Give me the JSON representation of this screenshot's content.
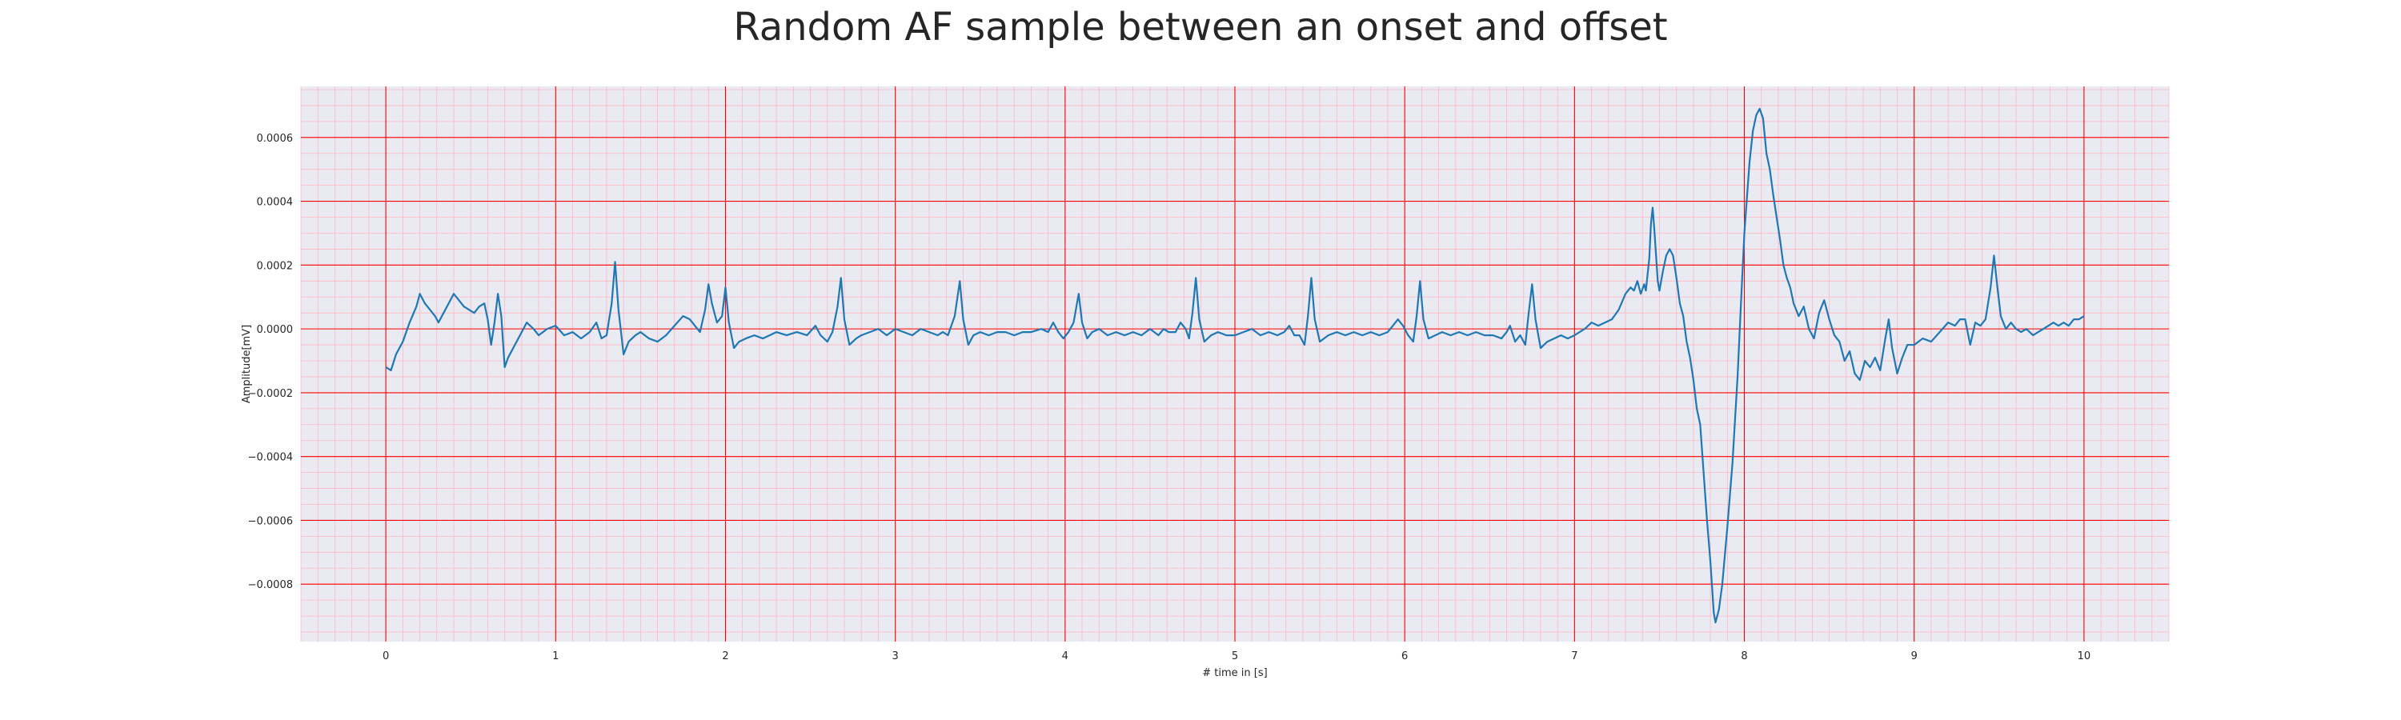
{
  "chart_data": {
    "type": "line",
    "title": "Random AF sample between an onset and offset",
    "xlabel": "# time in [s]",
    "ylabel": "Amplitude[mV]",
    "xlim": [
      -0.5,
      10.5
    ],
    "ylim": [
      -0.00098,
      0.00076
    ],
    "x_ticks": [
      0,
      1,
      2,
      3,
      4,
      5,
      6,
      7,
      8,
      9,
      10
    ],
    "x_tick_labels": [
      "0",
      "1",
      "2",
      "3",
      "4",
      "5",
      "6",
      "7",
      "8",
      "9",
      "10"
    ],
    "y_ticks": [
      -0.0008,
      -0.0006,
      -0.0004,
      -0.0002,
      0.0,
      0.0002,
      0.0004,
      0.0006
    ],
    "y_tick_labels": [
      "−0.0008",
      "−0.0006",
      "−0.0004",
      "−0.0002",
      "0.0000",
      "0.0002",
      "0.0004",
      "0.0006"
    ],
    "grid": true,
    "minor_grid": true,
    "colors": {
      "line": "#1f77b4",
      "background": "#eaeaf2",
      "major_grid": "#ff0000",
      "minor_grid": "#ffb6c1"
    },
    "series": [
      {
        "points": [
          [
            0.0,
            -0.00012
          ],
          [
            0.03,
            -0.00013
          ],
          [
            0.06,
            -8e-05
          ],
          [
            0.1,
            -4e-05
          ],
          [
            0.14,
            2e-05
          ],
          [
            0.18,
            7e-05
          ],
          [
            0.2,
            0.00011
          ],
          [
            0.23,
            8e-05
          ],
          [
            0.26,
            6e-05
          ],
          [
            0.29,
            4e-05
          ],
          [
            0.31,
            2e-05
          ],
          [
            0.34,
            5e-05
          ],
          [
            0.37,
            8e-05
          ],
          [
            0.4,
            0.00011
          ],
          [
            0.43,
            9e-05
          ],
          [
            0.46,
            7e-05
          ],
          [
            0.49,
            6e-05
          ],
          [
            0.52,
            5e-05
          ],
          [
            0.55,
            7e-05
          ],
          [
            0.58,
            8e-05
          ],
          [
            0.6,
            3e-05
          ],
          [
            0.62,
            -5e-05
          ],
          [
            0.64,
            2e-05
          ],
          [
            0.66,
            0.00011
          ],
          [
            0.68,
            4e-05
          ],
          [
            0.7,
            -0.00012
          ],
          [
            0.72,
            -9e-05
          ],
          [
            0.74,
            -7e-05
          ],
          [
            0.77,
            -4e-05
          ],
          [
            0.8,
            -1e-05
          ],
          [
            0.83,
            2e-05
          ],
          [
            0.87,
            0.0
          ],
          [
            0.9,
            -2e-05
          ],
          [
            0.95,
            0.0
          ],
          [
            1.0,
            1e-05
          ],
          [
            1.05,
            -2e-05
          ],
          [
            1.1,
            -1e-05
          ],
          [
            1.15,
            -3e-05
          ],
          [
            1.2,
            -1e-05
          ],
          [
            1.24,
            2e-05
          ],
          [
            1.27,
            -3e-05
          ],
          [
            1.3,
            -2e-05
          ],
          [
            1.33,
            8e-05
          ],
          [
            1.35,
            0.00021
          ],
          [
            1.37,
            6e-05
          ],
          [
            1.4,
            -8e-05
          ],
          [
            1.43,
            -4e-05
          ],
          [
            1.47,
            -2e-05
          ],
          [
            1.5,
            -1e-05
          ],
          [
            1.55,
            -3e-05
          ],
          [
            1.6,
            -4e-05
          ],
          [
            1.65,
            -2e-05
          ],
          [
            1.7,
            1e-05
          ],
          [
            1.75,
            4e-05
          ],
          [
            1.79,
            3e-05
          ],
          [
            1.82,
            1e-05
          ],
          [
            1.85,
            -1e-05
          ],
          [
            1.88,
            6e-05
          ],
          [
            1.9,
            0.00014
          ],
          [
            1.92,
            8e-05
          ],
          [
            1.95,
            2e-05
          ],
          [
            1.98,
            4e-05
          ],
          [
            2.0,
            0.00013
          ],
          [
            2.02,
            2e-05
          ],
          [
            2.05,
            -6e-05
          ],
          [
            2.08,
            -4e-05
          ],
          [
            2.12,
            -3e-05
          ],
          [
            2.17,
            -2e-05
          ],
          [
            2.22,
            -3e-05
          ],
          [
            2.3,
            -1e-05
          ],
          [
            2.36,
            -2e-05
          ],
          [
            2.42,
            -1e-05
          ],
          [
            2.48,
            -2e-05
          ],
          [
            2.53,
            1e-05
          ],
          [
            2.56,
            -2e-05
          ],
          [
            2.6,
            -4e-05
          ],
          [
            2.63,
            -1e-05
          ],
          [
            2.66,
            7e-05
          ],
          [
            2.68,
            0.00016
          ],
          [
            2.7,
            3e-05
          ],
          [
            2.73,
            -5e-05
          ],
          [
            2.77,
            -3e-05
          ],
          [
            2.8,
            -2e-05
          ],
          [
            2.85,
            -1e-05
          ],
          [
            2.9,
            0.0
          ],
          [
            2.95,
            -2e-05
          ],
          [
            3.0,
            0.0
          ],
          [
            3.05,
            -1e-05
          ],
          [
            3.1,
            -2e-05
          ],
          [
            3.15,
            0.0
          ],
          [
            3.2,
            -1e-05
          ],
          [
            3.25,
            -2e-05
          ],
          [
            3.28,
            -1e-05
          ],
          [
            3.31,
            -2e-05
          ],
          [
            3.35,
            4e-05
          ],
          [
            3.38,
            0.00015
          ],
          [
            3.4,
            3e-05
          ],
          [
            3.43,
            -5e-05
          ],
          [
            3.46,
            -2e-05
          ],
          [
            3.5,
            -1e-05
          ],
          [
            3.55,
            -2e-05
          ],
          [
            3.6,
            -1e-05
          ],
          [
            3.65,
            -1e-05
          ],
          [
            3.7,
            -2e-05
          ],
          [
            3.75,
            -1e-05
          ],
          [
            3.8,
            -1e-05
          ],
          [
            3.86,
            0.0
          ],
          [
            3.9,
            -1e-05
          ],
          [
            3.93,
            2e-05
          ],
          [
            3.96,
            -1e-05
          ],
          [
            3.99,
            -3e-05
          ],
          [
            4.02,
            -1e-05
          ],
          [
            4.05,
            2e-05
          ],
          [
            4.08,
            0.00011
          ],
          [
            4.1,
            2e-05
          ],
          [
            4.13,
            -3e-05
          ],
          [
            4.16,
            -1e-05
          ],
          [
            4.2,
            0.0
          ],
          [
            4.25,
            -2e-05
          ],
          [
            4.3,
            -1e-05
          ],
          [
            4.35,
            -2e-05
          ],
          [
            4.4,
            -1e-05
          ],
          [
            4.45,
            -2e-05
          ],
          [
            4.5,
            0.0
          ],
          [
            4.55,
            -2e-05
          ],
          [
            4.58,
            0.0
          ],
          [
            4.61,
            -1e-05
          ],
          [
            4.65,
            -1e-05
          ],
          [
            4.68,
            2e-05
          ],
          [
            4.71,
            0.0
          ],
          [
            4.73,
            -3e-05
          ],
          [
            4.75,
            5e-05
          ],
          [
            4.77,
            0.00016
          ],
          [
            4.79,
            3e-05
          ],
          [
            4.82,
            -4e-05
          ],
          [
            4.86,
            -2e-05
          ],
          [
            4.9,
            -1e-05
          ],
          [
            4.95,
            -2e-05
          ],
          [
            5.0,
            -2e-05
          ],
          [
            5.05,
            -1e-05
          ],
          [
            5.1,
            0.0
          ],
          [
            5.15,
            -2e-05
          ],
          [
            5.2,
            -1e-05
          ],
          [
            5.25,
            -2e-05
          ],
          [
            5.29,
            -1e-05
          ],
          [
            5.32,
            1e-05
          ],
          [
            5.35,
            -2e-05
          ],
          [
            5.38,
            -2e-05
          ],
          [
            5.41,
            -5e-05
          ],
          [
            5.43,
            4e-05
          ],
          [
            5.45,
            0.00016
          ],
          [
            5.47,
            3e-05
          ],
          [
            5.5,
            -4e-05
          ],
          [
            5.55,
            -2e-05
          ],
          [
            5.6,
            -1e-05
          ],
          [
            5.65,
            -2e-05
          ],
          [
            5.7,
            -1e-05
          ],
          [
            5.75,
            -2e-05
          ],
          [
            5.8,
            -1e-05
          ],
          [
            5.85,
            -2e-05
          ],
          [
            5.9,
            -1e-05
          ],
          [
            5.93,
            1e-05
          ],
          [
            5.96,
            3e-05
          ],
          [
            5.99,
            1e-05
          ],
          [
            6.02,
            -2e-05
          ],
          [
            6.05,
            -4e-05
          ],
          [
            6.07,
            4e-05
          ],
          [
            6.09,
            0.00015
          ],
          [
            6.11,
            3e-05
          ],
          [
            6.14,
            -3e-05
          ],
          [
            6.18,
            -2e-05
          ],
          [
            6.22,
            -1e-05
          ],
          [
            6.27,
            -2e-05
          ],
          [
            6.32,
            -1e-05
          ],
          [
            6.37,
            -2e-05
          ],
          [
            6.42,
            -1e-05
          ],
          [
            6.47,
            -2e-05
          ],
          [
            6.52,
            -2e-05
          ],
          [
            6.57,
            -3e-05
          ],
          [
            6.6,
            -1e-05
          ],
          [
            6.62,
            1e-05
          ],
          [
            6.65,
            -4e-05
          ],
          [
            6.68,
            -2e-05
          ],
          [
            6.71,
            -5e-05
          ],
          [
            6.73,
            5e-05
          ],
          [
            6.75,
            0.00014
          ],
          [
            6.77,
            3e-05
          ],
          [
            6.8,
            -6e-05
          ],
          [
            6.84,
            -4e-05
          ],
          [
            6.88,
            -3e-05
          ],
          [
            6.92,
            -2e-05
          ],
          [
            6.96,
            -3e-05
          ],
          [
            7.0,
            -2e-05
          ],
          [
            7.03,
            -1e-05
          ],
          [
            7.06,
            0.0
          ],
          [
            7.1,
            2e-05
          ],
          [
            7.14,
            1e-05
          ],
          [
            7.18,
            2e-05
          ],
          [
            7.22,
            3e-05
          ],
          [
            7.26,
            6e-05
          ],
          [
            7.3,
            0.00011
          ],
          [
            7.33,
            0.00013
          ],
          [
            7.35,
            0.00012
          ],
          [
            7.37,
            0.00015
          ],
          [
            7.39,
            0.00011
          ],
          [
            7.41,
            0.00014
          ],
          [
            7.42,
            0.00012
          ],
          [
            7.44,
            0.00022
          ],
          [
            7.45,
            0.00033
          ],
          [
            7.46,
            0.00038
          ],
          [
            7.47,
            0.00031
          ],
          [
            7.49,
            0.00015
          ],
          [
            7.5,
            0.00012
          ],
          [
            7.52,
            0.00018
          ],
          [
            7.54,
            0.00023
          ],
          [
            7.56,
            0.00025
          ],
          [
            7.58,
            0.00023
          ],
          [
            7.6,
            0.00016
          ],
          [
            7.62,
            8e-05
          ],
          [
            7.64,
            4e-05
          ],
          [
            7.66,
            -4e-05
          ],
          [
            7.68,
            -9e-05
          ],
          [
            7.7,
            -0.00016
          ],
          [
            7.72,
            -0.00025
          ],
          [
            7.74,
            -0.0003
          ],
          [
            7.76,
            -0.00045
          ],
          [
            7.78,
            -0.0006
          ],
          [
            7.8,
            -0.00073
          ],
          [
            7.82,
            -0.00089
          ],
          [
            7.83,
            -0.00092
          ],
          [
            7.85,
            -0.00088
          ],
          [
            7.87,
            -0.0008
          ],
          [
            7.9,
            -0.00062
          ],
          [
            7.93,
            -0.00042
          ],
          [
            7.96,
            -0.00015
          ],
          [
            7.98,
            8e-05
          ],
          [
            8.0,
            0.0003
          ],
          [
            8.03,
            0.00052
          ],
          [
            8.05,
            0.00062
          ],
          [
            8.07,
            0.00067
          ],
          [
            8.09,
            0.00069
          ],
          [
            8.11,
            0.00066
          ],
          [
            8.13,
            0.00055
          ],
          [
            8.15,
            0.0005
          ],
          [
            8.17,
            0.00042
          ],
          [
            8.19,
            0.00035
          ],
          [
            8.21,
            0.00028
          ],
          [
            8.23,
            0.0002
          ],
          [
            8.25,
            0.00016
          ],
          [
            8.27,
            0.00013
          ],
          [
            8.29,
            8e-05
          ],
          [
            8.32,
            4e-05
          ],
          [
            8.35,
            7e-05
          ],
          [
            8.38,
            0.0
          ],
          [
            8.41,
            -3e-05
          ],
          [
            8.44,
            5e-05
          ],
          [
            8.47,
            9e-05
          ],
          [
            8.5,
            3e-05
          ],
          [
            8.53,
            -2e-05
          ],
          [
            8.56,
            -4e-05
          ],
          [
            8.59,
            -0.0001
          ],
          [
            8.62,
            -7e-05
          ],
          [
            8.65,
            -0.00014
          ],
          [
            8.68,
            -0.00016
          ],
          [
            8.71,
            -0.0001
          ],
          [
            8.74,
            -0.00012
          ],
          [
            8.77,
            -9e-05
          ],
          [
            8.8,
            -0.00013
          ],
          [
            8.83,
            -3e-05
          ],
          [
            8.85,
            3e-05
          ],
          [
            8.87,
            -6e-05
          ],
          [
            8.9,
            -0.00014
          ],
          [
            8.93,
            -9e-05
          ],
          [
            8.96,
            -5e-05
          ],
          [
            9.0,
            -5e-05
          ],
          [
            9.05,
            -3e-05
          ],
          [
            9.1,
            -4e-05
          ],
          [
            9.15,
            -1e-05
          ],
          [
            9.2,
            2e-05
          ],
          [
            9.24,
            1e-05
          ],
          [
            9.27,
            3e-05
          ],
          [
            9.3,
            3e-05
          ],
          [
            9.33,
            -5e-05
          ],
          [
            9.36,
            2e-05
          ],
          [
            9.39,
            1e-05
          ],
          [
            9.42,
            3e-05
          ],
          [
            9.45,
            0.00013
          ],
          [
            9.47,
            0.00023
          ],
          [
            9.49,
            0.00013
          ],
          [
            9.51,
            4e-05
          ],
          [
            9.54,
            0.0
          ],
          [
            9.57,
            2e-05
          ],
          [
            9.6,
            0.0
          ],
          [
            9.63,
            -1e-05
          ],
          [
            9.66,
            0.0
          ],
          [
            9.7,
            -2e-05
          ],
          [
            9.73,
            -1e-05
          ],
          [
            9.76,
            0.0
          ],
          [
            9.79,
            1e-05
          ],
          [
            9.82,
            2e-05
          ],
          [
            9.85,
            1e-05
          ],
          [
            9.88,
            2e-05
          ],
          [
            9.91,
            1e-05
          ],
          [
            9.94,
            3e-05
          ],
          [
            9.97,
            3e-05
          ],
          [
            10.0,
            4e-05
          ]
        ]
      }
    ]
  }
}
